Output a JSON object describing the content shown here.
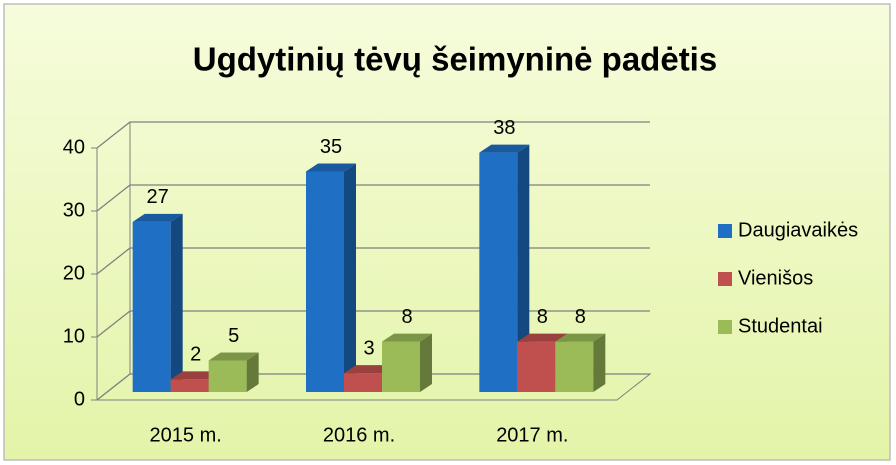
{
  "chart_data": {
    "type": "bar3d",
    "title": "Ugdytinių tėvų šeimyninė padėtis",
    "categories": [
      "2015 m.",
      "2016 m.",
      "2017 m."
    ],
    "series": [
      {
        "name": "Daugiavaikės",
        "color": "#1f6fc5",
        "values": [
          27,
          35,
          38
        ]
      },
      {
        "name": "Vienišos",
        "color": "#c0504d",
        "values": [
          2,
          3,
          8
        ]
      },
      {
        "name": "Studentai",
        "color": "#9bbb59",
        "values": [
          5,
          8,
          8
        ]
      }
    ],
    "ylim": [
      0,
      40
    ],
    "yticks": [
      0,
      10,
      20,
      30,
      40
    ],
    "grid": true,
    "legend": "right"
  }
}
